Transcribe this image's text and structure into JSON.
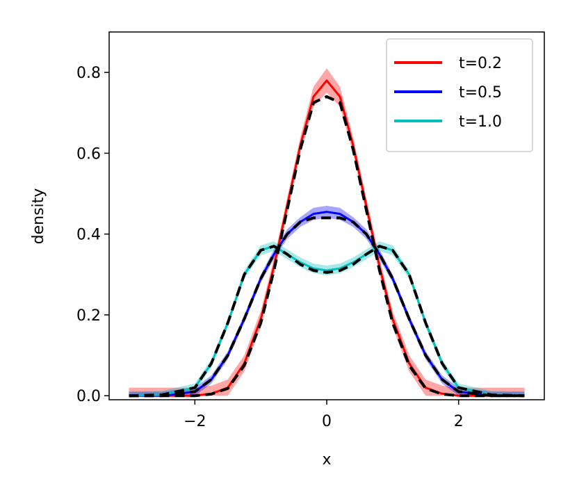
{
  "chart_data": {
    "type": "line",
    "xlabel": "x",
    "ylabel": "density",
    "xlim": [
      -3.3,
      3.3
    ],
    "ylim": [
      -0.01,
      0.9
    ],
    "xticks": [
      -2,
      0,
      2
    ],
    "xtick_labels": [
      "−2",
      "0",
      "2"
    ],
    "yticks": [
      0.0,
      0.2,
      0.4,
      0.6,
      0.8
    ],
    "ytick_labels": [
      "0.0",
      "0.2",
      "0.4",
      "0.6",
      "0.8"
    ],
    "legend_position": "top-right",
    "x": [
      -3.0,
      -2.5,
      -2.0,
      -1.75,
      -1.5,
      -1.25,
      -1.0,
      -0.8,
      -0.6,
      -0.4,
      -0.2,
      0.0,
      0.2,
      0.4,
      0.6,
      0.8,
      1.0,
      1.25,
      1.5,
      1.75,
      2.0,
      2.5,
      3.0
    ],
    "series": [
      {
        "name": "t=0.2",
        "color": "#ff0000",
        "values": [
          0.0,
          0.0,
          0.0,
          0.005,
          0.02,
          0.08,
          0.19,
          0.32,
          0.47,
          0.62,
          0.74,
          0.78,
          0.74,
          0.62,
          0.47,
          0.32,
          0.19,
          0.08,
          0.02,
          0.005,
          0.0,
          0.0,
          0.0
        ],
        "band": [
          0.02,
          0.02,
          0.02,
          0.02,
          0.02,
          0.02,
          0.02,
          0.02,
          0.02,
          0.02,
          0.025,
          0.03,
          0.025,
          0.02,
          0.02,
          0.02,
          0.02,
          0.02,
          0.02,
          0.02,
          0.02,
          0.02,
          0.02
        ]
      },
      {
        "name": "t=0.5",
        "color": "#0000ff",
        "values": [
          0.0,
          0.0,
          0.01,
          0.04,
          0.1,
          0.19,
          0.29,
          0.35,
          0.4,
          0.43,
          0.45,
          0.455,
          0.45,
          0.43,
          0.4,
          0.35,
          0.29,
          0.19,
          0.1,
          0.04,
          0.01,
          0.0,
          0.0
        ],
        "band": [
          0.01,
          0.01,
          0.01,
          0.01,
          0.01,
          0.01,
          0.01,
          0.012,
          0.012,
          0.012,
          0.015,
          0.015,
          0.015,
          0.012,
          0.012,
          0.012,
          0.01,
          0.01,
          0.01,
          0.01,
          0.01,
          0.01,
          0.01
        ]
      },
      {
        "name": "t=1.0",
        "color": "#00bfbf",
        "values": [
          0.0,
          0.002,
          0.02,
          0.08,
          0.18,
          0.3,
          0.36,
          0.37,
          0.35,
          0.33,
          0.315,
          0.31,
          0.315,
          0.33,
          0.35,
          0.37,
          0.36,
          0.3,
          0.18,
          0.08,
          0.02,
          0.002,
          0.0
        ],
        "band": [
          0.01,
          0.01,
          0.01,
          0.01,
          0.01,
          0.01,
          0.012,
          0.012,
          0.012,
          0.012,
          0.012,
          0.012,
          0.012,
          0.012,
          0.012,
          0.012,
          0.012,
          0.01,
          0.01,
          0.01,
          0.01,
          0.01,
          0.01
        ]
      }
    ],
    "reference_series": [
      {
        "style": "dashed",
        "color": "#000000",
        "values": [
          0.0,
          0.0,
          0.0,
          0.004,
          0.018,
          0.075,
          0.18,
          0.31,
          0.46,
          0.61,
          0.725,
          0.74,
          0.725,
          0.61,
          0.46,
          0.31,
          0.18,
          0.075,
          0.018,
          0.004,
          0.0,
          0.0,
          0.0
        ]
      },
      {
        "style": "dashed",
        "color": "#000000",
        "values": [
          0.0,
          0.0,
          0.01,
          0.04,
          0.1,
          0.19,
          0.29,
          0.35,
          0.4,
          0.43,
          0.44,
          0.44,
          0.44,
          0.43,
          0.4,
          0.35,
          0.29,
          0.19,
          0.1,
          0.04,
          0.01,
          0.0,
          0.0
        ]
      },
      {
        "style": "dashed",
        "color": "#000000",
        "values": [
          0.0,
          0.002,
          0.02,
          0.08,
          0.18,
          0.3,
          0.36,
          0.37,
          0.35,
          0.325,
          0.31,
          0.305,
          0.31,
          0.325,
          0.35,
          0.37,
          0.36,
          0.3,
          0.18,
          0.08,
          0.02,
          0.002,
          0.0
        ]
      }
    ]
  }
}
